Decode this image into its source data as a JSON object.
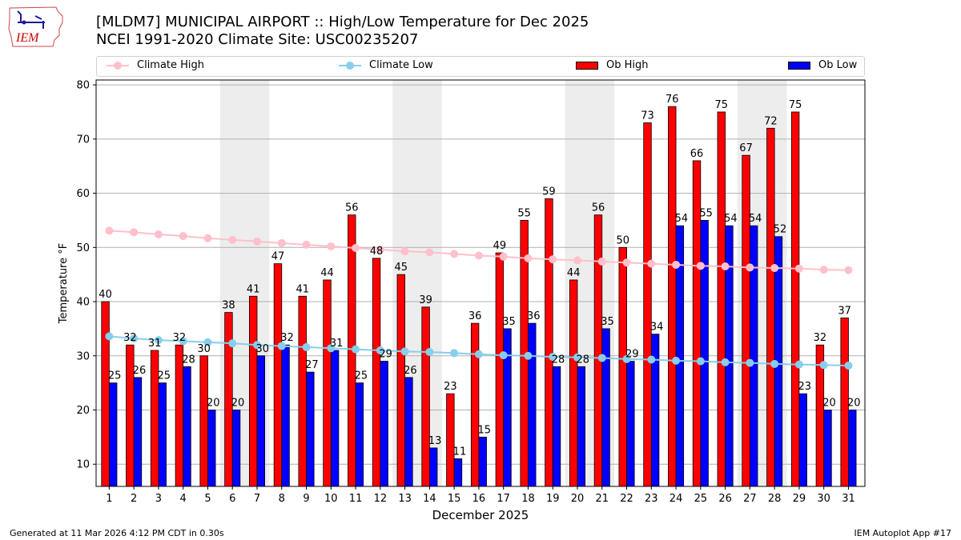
{
  "header": {
    "title_line1": "[MLDM7] MUNICIPAL AIRPORT :: High/Low Temperature for Dec 2025",
    "title_line2": "NCEI 1991-2020 Climate Site: USC00235207",
    "logo_text": "IEM"
  },
  "footer": {
    "generated": "Generated at 11 Mar 2026 4:12 PM CDT in 0.30s",
    "app": "IEM Autoplot App #17"
  },
  "colors": {
    "ob_high": "#ff0000",
    "ob_low": "#0000ff",
    "climate_high": "#ffc0cb",
    "climate_low": "#87ceeb",
    "weekend_shade": "#ededed",
    "grid": "#b0b0b0"
  },
  "chart_data": {
    "type": "bar",
    "title": "[MLDM7] MUNICIPAL AIRPORT :: High/Low Temperature for Dec 2025",
    "subtitle": "NCEI 1991-2020 Climate Site: USC00235207",
    "xlabel": "December 2025",
    "ylabel": "Temperature °F",
    "ylim": [
      5.9,
      80.9
    ],
    "yticks": [
      10,
      20,
      30,
      40,
      50,
      60,
      70,
      80
    ],
    "grid": true,
    "legend_position": "top",
    "categories": [
      "1",
      "2",
      "3",
      "4",
      "5",
      "6",
      "7",
      "8",
      "9",
      "10",
      "11",
      "12",
      "13",
      "14",
      "15",
      "16",
      "17",
      "18",
      "19",
      "20",
      "21",
      "22",
      "23",
      "24",
      "25",
      "26",
      "27",
      "28",
      "29",
      "30",
      "31"
    ],
    "weekend_days": [
      6,
      7,
      13,
      14,
      20,
      21,
      27,
      28
    ],
    "series": [
      {
        "name": "Climate High",
        "kind": "line",
        "values": [
          53.1,
          52.8,
          52.4,
          52.1,
          51.7,
          51.4,
          51.1,
          50.8,
          50.5,
          50.2,
          49.9,
          49.6,
          49.3,
          49.1,
          48.8,
          48.5,
          48.3,
          48.0,
          47.8,
          47.6,
          47.4,
          47.2,
          47.0,
          46.8,
          46.6,
          46.5,
          46.3,
          46.2,
          46.1,
          45.9,
          45.8
        ]
      },
      {
        "name": "Climate Low",
        "kind": "line",
        "values": [
          33.6,
          33.2,
          32.9,
          32.7,
          32.5,
          32.3,
          32.0,
          31.8,
          31.6,
          31.4,
          31.2,
          31.0,
          30.8,
          30.7,
          30.5,
          30.3,
          30.1,
          30.0,
          29.8,
          29.7,
          29.6,
          29.4,
          29.3,
          29.1,
          29.0,
          28.8,
          28.7,
          28.5,
          28.4,
          28.3,
          28.2
        ]
      },
      {
        "name": "Ob High",
        "kind": "bar",
        "values": [
          40,
          32,
          31,
          32,
          30,
          38,
          41,
          47,
          41,
          44,
          56,
          48,
          45,
          39,
          23,
          36,
          49,
          55,
          59,
          44,
          56,
          50,
          73,
          76,
          66,
          75,
          67,
          72,
          75,
          32,
          37
        ]
      },
      {
        "name": "Ob Low",
        "kind": "bar",
        "values": [
          25,
          26,
          25,
          28,
          20,
          20,
          30,
          32,
          27,
          31,
          25,
          29,
          26,
          13,
          11,
          15,
          35,
          36,
          28,
          28,
          35,
          29,
          34,
          54,
          55,
          54,
          54,
          52,
          23,
          20,
          20
        ]
      }
    ]
  }
}
